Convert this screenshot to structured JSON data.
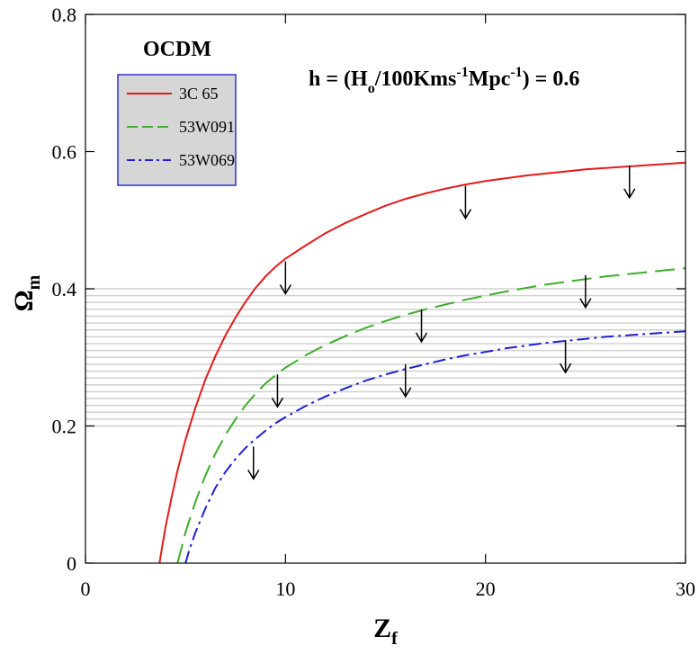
{
  "chart_data": {
    "type": "line",
    "title": "",
    "xlabel": "Z",
    "xlabel_sub": "f",
    "ylabel": "Ω",
    "ylabel_sub": "m",
    "xlim": [
      0,
      30
    ],
    "ylim": [
      0,
      0.8
    ],
    "x_ticks": [
      0,
      10,
      20,
      30
    ],
    "x_tick_labels": [
      "0",
      "10",
      "20",
      "30"
    ],
    "y_ticks": [
      0,
      0.2,
      0.4,
      0.6,
      0.8
    ],
    "y_tick_labels": [
      "0",
      "0.2",
      "0.4",
      "0.6",
      "0.8"
    ],
    "shaded_band": {
      "y_range": [
        0.2,
        0.4
      ],
      "style": "horizontal-lines",
      "color": "#d0d0d0"
    },
    "legend": {
      "title": "OCDM",
      "position": "top-left",
      "background": "#d6d6d6",
      "border": "#0000cc"
    },
    "annotation": {
      "parts": [
        {
          "t": "h = (H",
          "s": "normal"
        },
        {
          "t": "o",
          "s": "sub"
        },
        {
          "t": "/100Kms",
          "s": "normal"
        },
        {
          "t": "-1",
          "s": "sup"
        },
        {
          "t": "Mpc",
          "s": "normal"
        },
        {
          "t": "-1",
          "s": "sup"
        },
        {
          "t": ") = 0.6",
          "s": "normal"
        }
      ]
    },
    "series": [
      {
        "name": "3C 65",
        "color": "#e41a1c",
        "dash": "solid",
        "x": [
          3.7,
          3.8,
          4,
          4.3,
          4.6,
          5,
          5.5,
          6,
          6.5,
          7,
          7.5,
          8,
          8.5,
          9,
          9.5,
          10,
          11,
          12,
          13,
          14,
          15,
          16,
          17,
          18,
          19,
          20,
          21,
          22,
          23,
          24,
          25,
          26,
          27,
          28,
          29,
          30
        ],
        "y": [
          0.0,
          0.018,
          0.052,
          0.095,
          0.135,
          0.18,
          0.227,
          0.268,
          0.302,
          0.332,
          0.358,
          0.381,
          0.401,
          0.418,
          0.432,
          0.444,
          0.463,
          0.481,
          0.496,
          0.509,
          0.521,
          0.531,
          0.539,
          0.546,
          0.552,
          0.557,
          0.561,
          0.565,
          0.568,
          0.571,
          0.574,
          0.576,
          0.578,
          0.58,
          0.582,
          0.584
        ],
        "arrows": [
          [
            10,
            0.44
          ],
          [
            19,
            0.55
          ],
          [
            27.2,
            0.58
          ]
        ]
      },
      {
        "name": "53W091",
        "color": "#3dae2b",
        "dash": "long-dash",
        "x": [
          4.6,
          4.8,
          5,
          5.5,
          6,
          6.5,
          7,
          7.5,
          8,
          8.5,
          9,
          9.5,
          10,
          11,
          12,
          13,
          14,
          15,
          16,
          17,
          18,
          19,
          20,
          21,
          22,
          23,
          24,
          25,
          26,
          27,
          28,
          29,
          30
        ],
        "y": [
          0.0,
          0.022,
          0.045,
          0.09,
          0.128,
          0.16,
          0.187,
          0.21,
          0.23,
          0.247,
          0.262,
          0.274,
          0.285,
          0.303,
          0.318,
          0.331,
          0.343,
          0.353,
          0.362,
          0.37,
          0.377,
          0.384,
          0.39,
          0.396,
          0.401,
          0.406,
          0.41,
          0.414,
          0.418,
          0.421,
          0.424,
          0.427,
          0.43
        ],
        "arrows": [
          [
            9.6,
            0.275
          ],
          [
            16.8,
            0.37
          ],
          [
            25,
            0.42
          ]
        ]
      },
      {
        "name": "53W069",
        "color": "#1f1fd6",
        "dash": "dash-dot",
        "x": [
          5.0,
          5.2,
          5.5,
          6,
          6.5,
          7,
          7.5,
          8,
          8.5,
          9,
          9.5,
          10,
          11,
          12,
          13,
          14,
          15,
          16,
          17,
          18,
          19,
          20,
          21,
          22,
          23,
          24,
          25,
          26,
          27,
          28,
          29,
          30
        ],
        "y": [
          0.0,
          0.02,
          0.045,
          0.08,
          0.11,
          0.133,
          0.152,
          0.168,
          0.181,
          0.193,
          0.204,
          0.213,
          0.229,
          0.243,
          0.255,
          0.266,
          0.275,
          0.283,
          0.29,
          0.297,
          0.303,
          0.308,
          0.313,
          0.317,
          0.321,
          0.324,
          0.327,
          0.33,
          0.332,
          0.334,
          0.336,
          0.338
        ],
        "arrows": [
          [
            8.4,
            0.17
          ],
          [
            16,
            0.29
          ],
          [
            24,
            0.325
          ]
        ]
      }
    ]
  }
}
